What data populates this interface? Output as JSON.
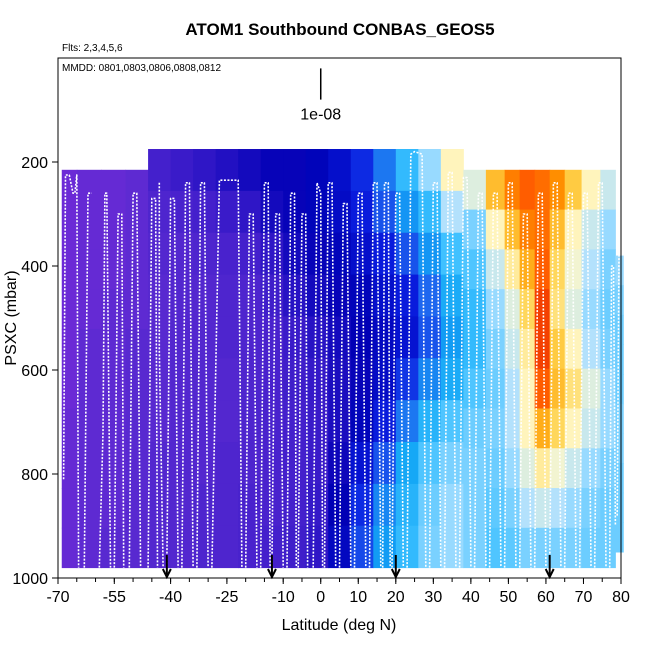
{
  "chart_data": {
    "type": "heatmap",
    "title": "ATOM1 Southbound CONBAS_GEOS5",
    "subtitle_flights": "Flts: 2,3,4,5,6",
    "subtitle_dates": "MMDD: 0801,0803,0806,0808,0812",
    "xlabel": "Latitude (deg N)",
    "ylabel": "PSXC (mbar)",
    "xlim": [
      -70,
      80
    ],
    "ylim": [
      1000,
      0
    ],
    "x_tick_labels": [
      "-70",
      "-55",
      "-40",
      "-25",
      "-10",
      "0",
      "10",
      "20",
      "30",
      "40",
      "50",
      "60",
      "70",
      "80"
    ],
    "y_tick_labels": [
      "1000",
      "800",
      "600",
      "400",
      "200"
    ],
    "y_ticks": [
      1000,
      800,
      600,
      400,
      200
    ],
    "scale_bar_label": "1e-08",
    "scale_bar_x": 0,
    "scale_bar_range": [
      20,
      80
    ],
    "profile_base_markers": [
      -41,
      -13,
      20,
      61
    ],
    "colormap": [
      "#8a2be2",
      "#5a2ad0",
      "#3318c8",
      "#0000b5",
      "#0a1ee0",
      "#1f6cf0",
      "#10a5f5",
      "#3ec0ff",
      "#aee0ff",
      "#fff8c8",
      "#ffd34d",
      "#ff9a00",
      "#ff5a00",
      "#e01000"
    ],
    "columns": [
      {
        "lat": -68,
        "top": 215,
        "bottom": 980,
        "values": [
          0.05,
          0.05,
          0.05,
          0.05,
          0.05,
          0.05,
          0.06,
          0.06,
          0.06,
          0.06
        ]
      },
      {
        "lat": -62,
        "top": 215,
        "bottom": 980,
        "values": [
          0.06,
          0.06,
          0.06,
          0.06,
          0.07,
          0.07,
          0.07,
          0.07,
          0.07,
          0.07
        ]
      },
      {
        "lat": -55,
        "top": 215,
        "bottom": 980,
        "values": [
          0.06,
          0.06,
          0.06,
          0.07,
          0.07,
          0.07,
          0.07,
          0.07,
          0.07,
          0.08
        ]
      },
      {
        "lat": -49,
        "top": 215,
        "bottom": 980,
        "values": [
          0.07,
          0.07,
          0.07,
          0.07,
          0.08,
          0.08,
          0.08,
          0.08,
          0.08,
          0.08
        ]
      },
      {
        "lat": -43,
        "top": 175,
        "bottom": 980,
        "values": [
          0.12,
          0.1,
          0.09,
          0.08,
          0.08,
          0.08,
          0.08,
          0.09,
          0.09,
          0.09
        ]
      },
      {
        "lat": -37,
        "top": 175,
        "bottom": 980,
        "values": [
          0.14,
          0.11,
          0.09,
          0.09,
          0.09,
          0.09,
          0.09,
          0.09,
          0.09,
          0.09
        ]
      },
      {
        "lat": -31,
        "top": 175,
        "bottom": 980,
        "values": [
          0.16,
          0.12,
          0.1,
          0.09,
          0.09,
          0.09,
          0.09,
          0.09,
          0.1,
          0.1
        ]
      },
      {
        "lat": -25,
        "top": 175,
        "bottom": 980,
        "values": [
          0.18,
          0.14,
          0.11,
          0.1,
          0.1,
          0.09,
          0.09,
          0.1,
          0.1,
          0.1
        ]
      },
      {
        "lat": -19,
        "top": 175,
        "bottom": 980,
        "values": [
          0.2,
          0.16,
          0.12,
          0.1,
          0.1,
          0.1,
          0.1,
          0.1,
          0.11,
          0.11
        ]
      },
      {
        "lat": -13,
        "top": 175,
        "bottom": 980,
        "values": [
          0.22,
          0.2,
          0.16,
          0.13,
          0.11,
          0.11,
          0.11,
          0.11,
          0.11,
          0.12
        ]
      },
      {
        "lat": -7,
        "top": 175,
        "bottom": 980,
        "values": [
          0.22,
          0.22,
          0.2,
          0.17,
          0.14,
          0.13,
          0.12,
          0.12,
          0.12,
          0.13
        ]
      },
      {
        "lat": -1,
        "top": 175,
        "bottom": 980,
        "values": [
          0.24,
          0.24,
          0.22,
          0.2,
          0.17,
          0.15,
          0.14,
          0.14,
          0.15,
          0.16
        ]
      },
      {
        "lat": 5,
        "top": 175,
        "bottom": 980,
        "values": [
          0.27,
          0.26,
          0.24,
          0.22,
          0.2,
          0.19,
          0.19,
          0.21,
          0.23,
          0.25
        ]
      },
      {
        "lat": 11,
        "top": 175,
        "bottom": 980,
        "values": [
          0.32,
          0.3,
          0.27,
          0.24,
          0.23,
          0.22,
          0.24,
          0.28,
          0.32,
          0.35
        ]
      },
      {
        "lat": 17,
        "top": 175,
        "bottom": 980,
        "values": [
          0.4,
          0.36,
          0.3,
          0.27,
          0.25,
          0.26,
          0.3,
          0.36,
          0.42,
          0.45
        ]
      },
      {
        "lat": 23,
        "top": 175,
        "bottom": 980,
        "values": [
          0.52,
          0.44,
          0.36,
          0.3,
          0.28,
          0.33,
          0.4,
          0.47,
          0.5,
          0.52
        ]
      },
      {
        "lat": 29,
        "top": 175,
        "bottom": 980,
        "values": [
          0.6,
          0.52,
          0.44,
          0.38,
          0.36,
          0.42,
          0.5,
          0.55,
          0.57,
          0.58
        ]
      },
      {
        "lat": 35,
        "top": 175,
        "bottom": 980,
        "values": [
          0.7,
          0.62,
          0.54,
          0.48,
          0.45,
          0.48,
          0.55,
          0.58,
          0.6,
          0.6
        ]
      },
      {
        "lat": 41,
        "top": 215,
        "bottom": 980,
        "values": [
          0.66,
          0.58,
          0.55,
          0.52,
          0.52,
          0.55,
          0.57,
          0.58,
          0.58,
          0.58
        ]
      },
      {
        "lat": 47,
        "top": 215,
        "bottom": 980,
        "values": [
          0.8,
          0.7,
          0.64,
          0.6,
          0.58,
          0.57,
          0.58,
          0.57,
          0.56,
          0.55
        ]
      },
      {
        "lat": 51,
        "top": 215,
        "bottom": 980,
        "values": [
          0.88,
          0.8,
          0.72,
          0.66,
          0.64,
          0.62,
          0.62,
          0.6,
          0.58,
          0.56
        ]
      },
      {
        "lat": 55,
        "top": 215,
        "bottom": 980,
        "values": [
          0.92,
          0.88,
          0.82,
          0.76,
          0.72,
          0.7,
          0.7,
          0.66,
          0.62,
          0.58
        ]
      },
      {
        "lat": 59,
        "top": 215,
        "bottom": 980,
        "values": [
          0.9,
          0.9,
          0.92,
          0.95,
          0.95,
          0.92,
          0.82,
          0.72,
          0.64,
          0.58
        ]
      },
      {
        "lat": 63,
        "top": 215,
        "bottom": 980,
        "values": [
          0.86,
          0.8,
          0.76,
          0.74,
          0.78,
          0.8,
          0.76,
          0.68,
          0.62,
          0.58
        ]
      },
      {
        "lat": 67,
        "top": 215,
        "bottom": 980,
        "values": [
          0.78,
          0.7,
          0.68,
          0.66,
          0.7,
          0.74,
          0.7,
          0.64,
          0.6,
          0.58
        ]
      },
      {
        "lat": 72,
        "top": 215,
        "bottom": 980,
        "values": [
          0.7,
          0.64,
          0.62,
          0.6,
          0.62,
          0.66,
          0.64,
          0.6,
          0.58,
          0.57
        ]
      },
      {
        "lat": 77,
        "top": 215,
        "bottom": 980,
        "values": [
          0.64,
          0.6,
          0.58,
          0.57,
          0.58,
          0.6,
          0.6,
          0.58,
          0.57,
          0.57
        ]
      },
      {
        "lat": 80,
        "top": 380,
        "bottom": 950,
        "values": [
          0.6,
          0.58,
          0.57,
          0.57,
          0.57,
          0.58,
          0.58,
          0.57,
          0.57,
          0.57
        ]
      }
    ],
    "profiles": [
      {
        "x": [
          -68.5,
          -68,
          -67,
          -66,
          -65.5,
          -65,
          -64.5
        ],
        "y": [
          810,
          225,
          225,
          260,
          260,
          225,
          980
        ]
      },
      {
        "x": [
          -63,
          -62,
          -61
        ],
        "y": [
          980,
          260,
          260
        ]
      },
      {
        "x": [
          -59,
          -58,
          -57.5,
          -57,
          -56
        ],
        "y": [
          980,
          720,
          260,
          260,
          980
        ]
      },
      {
        "x": [
          -55,
          -54,
          -53,
          -52.5
        ],
        "y": [
          980,
          300,
          300,
          980
        ]
      },
      {
        "x": [
          -51,
          -50,
          -49,
          -48
        ],
        "y": [
          980,
          260,
          260,
          980
        ]
      },
      {
        "x": [
          -46,
          -45,
          -44,
          -43.5
        ],
        "y": [
          980,
          270,
          270,
          980
        ]
      },
      {
        "x": [
          -43,
          -43,
          -42
        ],
        "y": [
          240,
          560,
          980
        ]
      },
      {
        "x": [
          -41,
          -40,
          -39,
          -38
        ],
        "y": [
          980,
          270,
          270,
          980
        ]
      },
      {
        "x": [
          -37,
          -36,
          -35,
          -34
        ],
        "y": [
          980,
          240,
          240,
          980
        ]
      },
      {
        "x": [
          -33,
          -32,
          -31,
          -30
        ],
        "y": [
          980,
          240,
          240,
          980
        ]
      },
      {
        "x": [
          -29,
          -27,
          -24,
          -22,
          -21
        ],
        "y": [
          980,
          235,
          235,
          235,
          980
        ]
      },
      {
        "x": [
          -20,
          -19,
          -18,
          -17
        ],
        "y": [
          980,
          300,
          300,
          980
        ]
      },
      {
        "x": [
          -16,
          -15,
          -14,
          -13.5
        ],
        "y": [
          980,
          240,
          240,
          980
        ]
      },
      {
        "x": [
          -13,
          -12,
          -11,
          -10
        ],
        "y": [
          980,
          300,
          300,
          980
        ]
      },
      {
        "x": [
          -9,
          -8,
          -7,
          -6.5
        ],
        "y": [
          980,
          260,
          260,
          980
        ]
      },
      {
        "x": [
          -6,
          -5,
          -4,
          -3.5
        ],
        "y": [
          980,
          300,
          300,
          980
        ]
      },
      {
        "x": [
          -2,
          -1,
          0,
          0.5
        ],
        "y": [
          980,
          240,
          260,
          980
        ]
      },
      {
        "x": [
          1,
          2,
          3,
          4
        ],
        "y": [
          980,
          240,
          240,
          980
        ]
      },
      {
        "x": [
          5,
          6,
          7,
          8
        ],
        "y": [
          980,
          280,
          280,
          980
        ]
      },
      {
        "x": [
          9,
          10,
          11,
          12
        ],
        "y": [
          980,
          260,
          260,
          980
        ]
      },
      {
        "x": [
          13,
          14,
          15,
          16
        ],
        "y": [
          980,
          240,
          240,
          980
        ]
      },
      {
        "x": [
          16.5,
          17,
          18,
          18.5
        ],
        "y": [
          980,
          240,
          240,
          980
        ]
      },
      {
        "x": [
          19,
          20,
          21,
          22
        ],
        "y": [
          980,
          260,
          260,
          980
        ]
      },
      {
        "x": [
          23,
          24,
          25,
          27,
          28
        ],
        "y": [
          980,
          185,
          180,
          185,
          980
        ]
      },
      {
        "x": [
          29,
          30,
          31,
          32
        ],
        "y": [
          980,
          240,
          240,
          980
        ]
      },
      {
        "x": [
          33,
          34,
          35,
          36
        ],
        "y": [
          980,
          220,
          220,
          980
        ]
      },
      {
        "x": [
          37,
          38,
          39,
          40
        ],
        "y": [
          980,
          230,
          230,
          980
        ]
      },
      {
        "x": [
          41,
          42,
          43,
          44
        ],
        "y": [
          980,
          260,
          260,
          980
        ]
      },
      {
        "x": [
          45,
          46,
          47,
          48
        ],
        "y": [
          980,
          260,
          260,
          980
        ]
      },
      {
        "x": [
          49,
          50,
          51,
          52
        ],
        "y": [
          980,
          240,
          240,
          980
        ]
      },
      {
        "x": [
          53,
          54,
          55,
          56
        ],
        "y": [
          980,
          300,
          300,
          980
        ]
      },
      {
        "x": [
          57,
          58,
          59,
          60
        ],
        "y": [
          980,
          260,
          260,
          980
        ]
      },
      {
        "x": [
          61,
          62,
          63,
          64
        ],
        "y": [
          980,
          240,
          240,
          980
        ]
      },
      {
        "x": [
          65,
          66,
          67,
          68
        ],
        "y": [
          980,
          260,
          260,
          980
        ]
      },
      {
        "x": [
          69,
          70,
          71,
          72
        ],
        "y": [
          980,
          260,
          260,
          980
        ]
      },
      {
        "x": [
          73,
          74,
          75,
          76
        ],
        "y": [
          980,
          240,
          240,
          980
        ]
      },
      {
        "x": [
          77,
          77.5,
          78,
          78.5
        ],
        "y": [
          980,
          400,
          400,
          900
        ]
      },
      {
        "x": [
          79,
          79.5
        ],
        "y": [
          880,
          350
        ]
      }
    ]
  }
}
